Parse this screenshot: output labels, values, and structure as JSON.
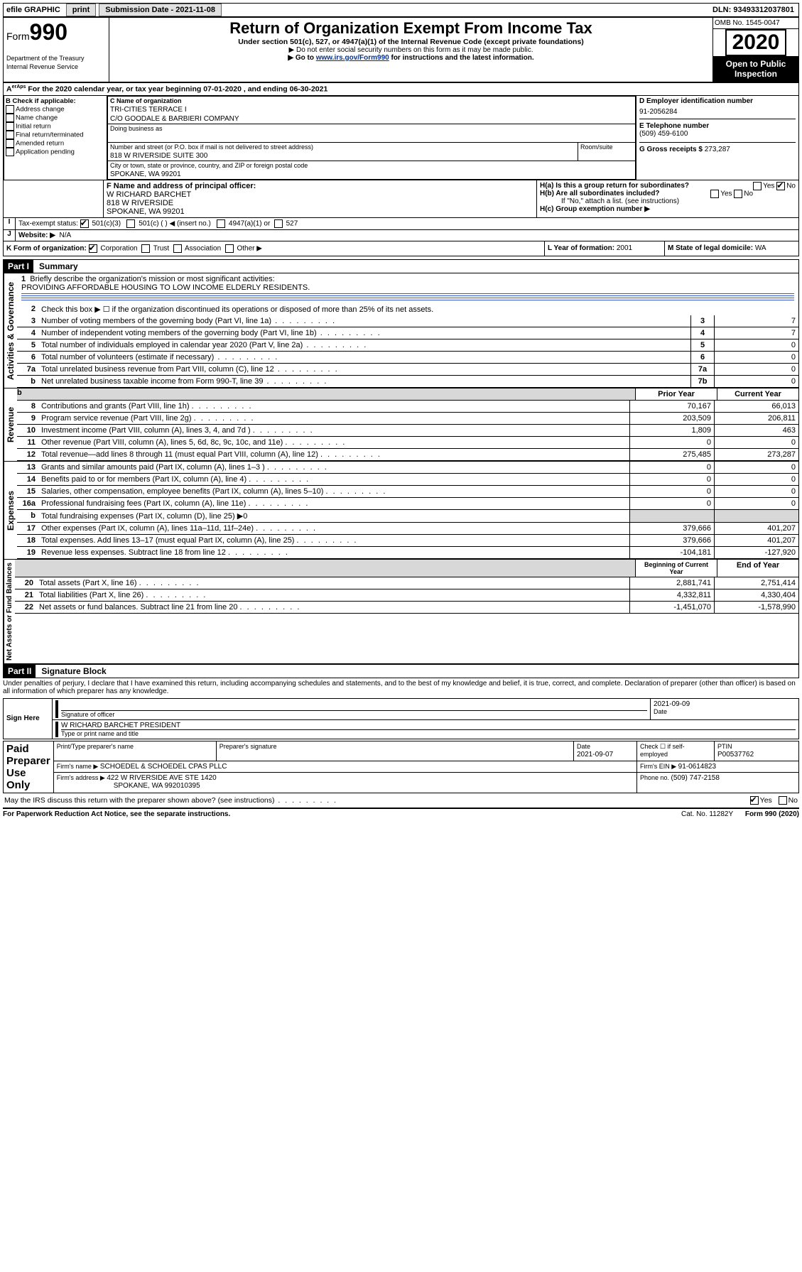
{
  "topbar": {
    "efile": "efile GRAPHIC",
    "print": "print",
    "submission_label": "Submission Date - ",
    "submission_date": "2021-11-08",
    "dln_label": "DLN: ",
    "dln": "93493312037801"
  },
  "header": {
    "form_label": "Form",
    "form_number": "990",
    "dept": "Department of the Treasury\nInternal Revenue Service",
    "title": "Return of Organization Exempt From Income Tax",
    "subtitle": "Under section 501(c), 527, or 4947(a)(1) of the Internal Revenue Code (except private foundations)",
    "note1": "▶ Do not enter social security numbers on this form as it may be made public.",
    "note2_pre": "▶ Go to ",
    "note2_link": "www.irs.gov/Form990",
    "note2_post": " for instructions and the latest information.",
    "omb": "OMB No. 1545-0047",
    "year": "2020",
    "open": "Open to Public\nInspection"
  },
  "period": {
    "text_pre": "For the 2020 calendar year, or tax year beginning ",
    "begin": "07-01-2020",
    "mid": " , and ending ",
    "end": "06-30-2021"
  },
  "boxB": {
    "label": "B Check if applicable:",
    "items": [
      "Address change",
      "Name change",
      "Initial return",
      "Final return/terminated",
      "Amended return",
      "Application pending"
    ]
  },
  "boxC": {
    "name_label": "C Name of organization",
    "name": "TRI-CITIES TERRACE I",
    "co": "C/O GOODALE & BARBIERI COMPANY",
    "dba_label": "Doing business as",
    "street_label": "Number and street (or P.O. box if mail is not delivered to street address)",
    "room_label": "Room/suite",
    "street": "818 W RIVERSIDE SUITE 300",
    "city_label": "City or town, state or province, country, and ZIP or foreign postal code",
    "city": "SPOKANE, WA  99201"
  },
  "boxD": {
    "label": "D Employer identification number",
    "value": "91-2056284"
  },
  "boxE": {
    "label": "E Telephone number",
    "value": "(509) 459-6100"
  },
  "boxG": {
    "label": "G Gross receipts $ ",
    "value": "273,287"
  },
  "boxF": {
    "label": "F  Name and address of principal officer:",
    "name": "W RICHARD BARCHET",
    "street": "818 W RIVERSIDE",
    "city": "SPOKANE, WA  99201"
  },
  "boxH": {
    "a_label": "H(a)  Is this a group return for subordinates?",
    "b_label": "H(b)  Are all subordinates included?",
    "b_note": "If \"No,\" attach a list. (see instructions)",
    "c_label": "H(c)  Group exemption number ▶",
    "yes": "Yes",
    "no": "No"
  },
  "taxexempt": {
    "label": "Tax-exempt status:",
    "opt1": "501(c)(3)",
    "opt2": "501(c) (   ) ◀ (insert no.)",
    "opt3": "4947(a)(1) or",
    "opt4": "527"
  },
  "rowI": {
    "label": "I",
    "text": "Website: ▶",
    "value": "N/A"
  },
  "rowJ": {
    "label": "J",
    "text": "Website: ▶",
    "value": "N/A"
  },
  "rowK": {
    "label": "K Form of organization:",
    "opts": [
      "Corporation",
      "Trust",
      "Association",
      "Other ▶"
    ],
    "L_label": "L Year of formation: ",
    "L_val": "2001",
    "M_label": "M State of legal domicile: ",
    "M_val": "WA"
  },
  "part1": {
    "header": "Part I",
    "title": "Summary"
  },
  "sections": {
    "gov": "Activities & Governance",
    "rev": "Revenue",
    "exp": "Expenses",
    "net": "Net Assets or Fund Balances"
  },
  "line1": {
    "label": "1",
    "text": "Briefly describe the organization's mission or most significant activities:",
    "value": "PROVIDING AFFORDABLE HOUSING TO LOW INCOME ELDERLY RESIDENTS."
  },
  "line2": {
    "label": "2",
    "text": "Check this box ▶ ☐  if the organization discontinued its operations or disposed of more than 25% of its net assets."
  },
  "lines_gov": [
    {
      "n": "3",
      "t": "Number of voting members of the governing body (Part VI, line 1a)",
      "box": "3",
      "v": "7"
    },
    {
      "n": "4",
      "t": "Number of independent voting members of the governing body (Part VI, line 1b)",
      "box": "4",
      "v": "7"
    },
    {
      "n": "5",
      "t": "Total number of individuals employed in calendar year 2020 (Part V, line 2a)",
      "box": "5",
      "v": "0"
    },
    {
      "n": "6",
      "t": "Total number of volunteers (estimate if necessary)",
      "box": "6",
      "v": "0"
    },
    {
      "n": "7a",
      "t": "Total unrelated business revenue from Part VIII, column (C), line 12",
      "box": "7a",
      "v": "0"
    },
    {
      "n": "b",
      "t": "Net unrelated business taxable income from Form 990-T, line 39",
      "box": "7b",
      "v": "0"
    }
  ],
  "col_headers": {
    "prior": "Prior Year",
    "current": "Current Year"
  },
  "lines_rev": [
    {
      "n": "8",
      "t": "Contributions and grants (Part VIII, line 1h)",
      "p": "70,167",
      "c": "66,013"
    },
    {
      "n": "9",
      "t": "Program service revenue (Part VIII, line 2g)",
      "p": "203,509",
      "c": "206,811"
    },
    {
      "n": "10",
      "t": "Investment income (Part VIII, column (A), lines 3, 4, and 7d )",
      "p": "1,809",
      "c": "463"
    },
    {
      "n": "11",
      "t": "Other revenue (Part VIII, column (A), lines 5, 6d, 8c, 9c, 10c, and 11e)",
      "p": "0",
      "c": "0"
    },
    {
      "n": "12",
      "t": "Total revenue—add lines 8 through 11 (must equal Part VIII, column (A), line 12)",
      "p": "275,485",
      "c": "273,287"
    }
  ],
  "lines_exp": [
    {
      "n": "13",
      "t": "Grants and similar amounts paid (Part IX, column (A), lines 1–3 )",
      "p": "0",
      "c": "0"
    },
    {
      "n": "14",
      "t": "Benefits paid to or for members (Part IX, column (A), line 4)",
      "p": "0",
      "c": "0"
    },
    {
      "n": "15",
      "t": "Salaries, other compensation, employee benefits (Part IX, column (A), lines 5–10)",
      "p": "0",
      "c": "0"
    },
    {
      "n": "16a",
      "t": "Professional fundraising fees (Part IX, column (A), line 11e)",
      "p": "0",
      "c": "0"
    },
    {
      "n": "b",
      "t": "Total fundraising expenses (Part IX, column (D), line 25) ▶0",
      "p": "",
      "c": "",
      "shade": true
    },
    {
      "n": "17",
      "t": "Other expenses (Part IX, column (A), lines 11a–11d, 11f–24e)",
      "p": "379,666",
      "c": "401,207"
    },
    {
      "n": "18",
      "t": "Total expenses. Add lines 13–17 (must equal Part IX, column (A), line 25)",
      "p": "379,666",
      "c": "401,207"
    },
    {
      "n": "19",
      "t": "Revenue less expenses. Subtract line 18 from line 12",
      "p": "-104,181",
      "c": "-127,920"
    }
  ],
  "col_headers2": {
    "prior": "Beginning of Current Year",
    "current": "End of Year"
  },
  "lines_net": [
    {
      "n": "20",
      "t": "Total assets (Part X, line 16)",
      "p": "2,881,741",
      "c": "2,751,414"
    },
    {
      "n": "21",
      "t": "Total liabilities (Part X, line 26)",
      "p": "4,332,811",
      "c": "4,330,404"
    },
    {
      "n": "22",
      "t": "Net assets or fund balances. Subtract line 21 from line 20",
      "p": "-1,451,070",
      "c": "-1,578,990"
    }
  ],
  "part2": {
    "header": "Part II",
    "title": "Signature Block"
  },
  "perjury": "Under penalties of perjury, I declare that I have examined this return, including accompanying schedules and statements, and to the best of my knowledge and belief, it is true, correct, and complete. Declaration of preparer (other than officer) is based on all information of which preparer has any knowledge.",
  "sign": {
    "left": "Sign Here",
    "sig_label": "Signature of officer",
    "date": "2021-09-09",
    "date_label": "Date",
    "name": "W RICHARD BARCHET  PRESIDENT",
    "name_label": "Type or print name and title"
  },
  "paid": {
    "left": "Paid Preparer Use Only",
    "h1": "Print/Type preparer's name",
    "h2": "Preparer's signature",
    "h3_label": "Date",
    "h3": "2021-09-07",
    "h4_label": "Check ☐ if self-employed",
    "h5_label": "PTIN",
    "h5": "P00537762",
    "firm_label": "Firm's name    ▶ ",
    "firm": "SCHOEDEL & SCHOEDEL CPAS PLLC",
    "ein_label": "Firm's EIN ▶ ",
    "ein": "91-0614823",
    "addr_label": "Firm's address ▶ ",
    "addr": "422 W RIVERSIDE AVE STE 1420",
    "addr2": "SPOKANE, WA  992010395",
    "phone_label": "Phone no. ",
    "phone": "(509) 747-2158"
  },
  "discuss": {
    "text": "May the IRS discuss this return with the preparer shown above? (see instructions)",
    "yes": "Yes",
    "no": "No"
  },
  "footer": {
    "left": "For Paperwork Reduction Act Notice, see the separate instructions.",
    "mid": "Cat. No. 11282Y",
    "right": "Form 990 (2020)"
  }
}
